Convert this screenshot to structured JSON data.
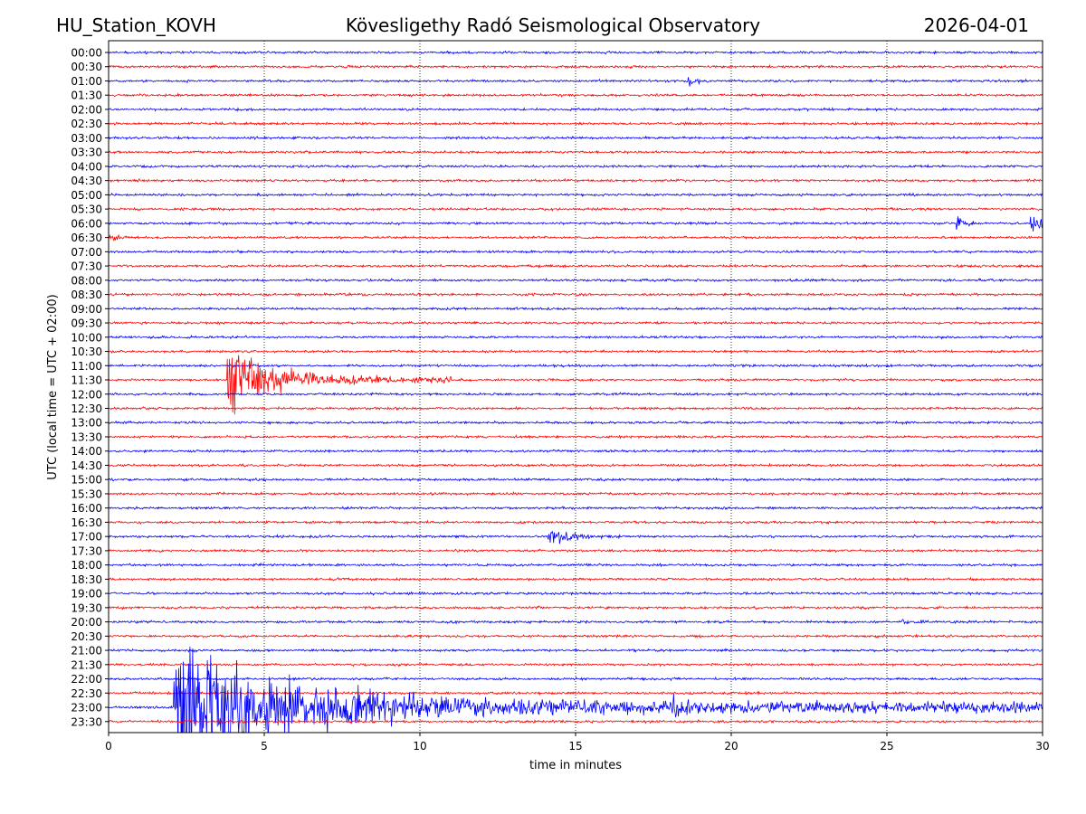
{
  "header": {
    "station": "HU_Station_KOVH",
    "observatory": "Kövesligethy Radó Seismological Observatory",
    "date": "2026-04-01"
  },
  "chart_data": {
    "type": "line",
    "title": "Kövesligethy Radó Seismological Observatory",
    "xlabel": "time in minutes",
    "ylabel": "UTC (local time = UTC + 02:00)",
    "xlim": [
      0,
      30
    ],
    "x_ticks": [
      0,
      5,
      10,
      15,
      20,
      25,
      30
    ],
    "x_tick_labels": [
      "0",
      "5",
      "10",
      "15",
      "20",
      "25",
      "30"
    ],
    "grid": "vertical dotted",
    "trace_colors": [
      "#0000ff",
      "#ff0000"
    ],
    "rows": [
      "00:00",
      "00:30",
      "01:00",
      "01:30",
      "02:00",
      "02:30",
      "03:00",
      "03:30",
      "04:00",
      "04:30",
      "05:00",
      "05:30",
      "06:00",
      "06:30",
      "07:00",
      "07:30",
      "08:00",
      "08:30",
      "09:00",
      "09:30",
      "10:00",
      "10:30",
      "11:00",
      "11:30",
      "12:00",
      "12:30",
      "13:00",
      "13:30",
      "14:00",
      "14:30",
      "15:00",
      "15:30",
      "16:00",
      "16:30",
      "17:00",
      "17:30",
      "18:00",
      "18:30",
      "19:00",
      "19:30",
      "20:00",
      "20:30",
      "21:00",
      "21:30",
      "22:00",
      "22:30",
      "23:00",
      "23:30"
    ],
    "noise_amplitude": 0.12,
    "events": [
      {
        "row": 2,
        "start": 18.6,
        "end": 19.3,
        "amp": 0.7,
        "decay": 0.4
      },
      {
        "row": 12,
        "start": 27.2,
        "end": 27.8,
        "amp": 1.1,
        "decay": 0.35
      },
      {
        "row": 12,
        "start": 29.6,
        "end": 30.0,
        "amp": 1.6,
        "decay": 0.5
      },
      {
        "row": 13,
        "start": 0.0,
        "end": 1.2,
        "amp": 0.45,
        "decay": 0.8
      },
      {
        "row": 23,
        "start": 3.8,
        "end": 11.0,
        "amp": 4.0,
        "decay": 1.2
      },
      {
        "row": 23,
        "start": 4.6,
        "end": 6.0,
        "amp": 2.2,
        "decay": 0.4
      },
      {
        "row": 23,
        "start": 7.5,
        "end": 10.0,
        "amp": 0.6,
        "decay": 1.5
      },
      {
        "row": 34,
        "start": 14.1,
        "end": 17.5,
        "amp": 0.9,
        "decay": 1.2
      },
      {
        "row": 40,
        "start": 25.5,
        "end": 26.6,
        "amp": 0.35,
        "decay": 0.8
      },
      {
        "row": 46,
        "start": 2.1,
        "end": 30.0,
        "amp": 7.5,
        "decay": 3.5
      },
      {
        "row": 46,
        "start": 5.0,
        "end": 9.5,
        "amp": 3.5,
        "decay": 2.5
      },
      {
        "row": 46,
        "start": 18.1,
        "end": 19.5,
        "amp": 1.8,
        "decay": 0.7
      },
      {
        "row": 46,
        "start": 26.3,
        "end": 26.8,
        "amp": 0.9,
        "decay": 0.3
      }
    ]
  }
}
